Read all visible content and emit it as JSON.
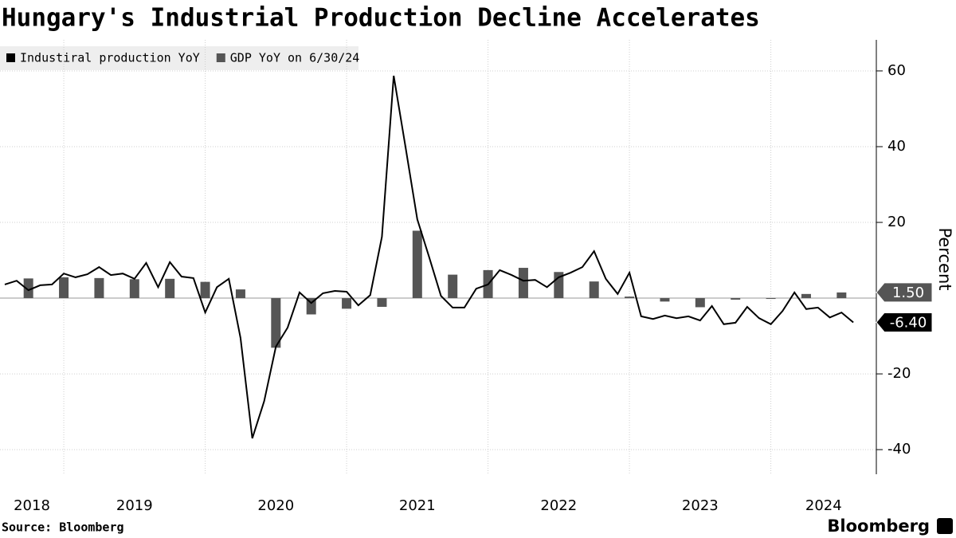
{
  "chart_data": {
    "type": "line-bar",
    "title": "Hungary's Industrial Production Decline Accelerates",
    "source": "Source: Bloomberg",
    "brand": "Bloomberg",
    "ylabel": "Percent",
    "xlim": [
      2018.549,
      2024.746
    ],
    "ylim": [
      -46.5,
      68.2
    ],
    "yticks": [
      -40,
      -20,
      20,
      40,
      60
    ],
    "xticks": [
      {
        "value": 2018,
        "label": "2018"
      },
      {
        "value": 2019,
        "label": "2019"
      },
      {
        "value": 2020,
        "label": "2020"
      },
      {
        "value": 2021,
        "label": "2021"
      },
      {
        "value": 2022,
        "label": "2022"
      },
      {
        "value": 2023,
        "label": "2023"
      },
      {
        "value": 2024,
        "label": "2024"
      }
    ],
    "grid": true,
    "series": [
      {
        "name": "Industiral production YoY",
        "kind": "line",
        "color": "#000000",
        "x": [
          2018.583,
          2018.667,
          2018.75,
          2018.833,
          2018.917,
          2019,
          2019.083,
          2019.167,
          2019.25,
          2019.333,
          2019.417,
          2019.5,
          2019.583,
          2019.667,
          2019.75,
          2019.833,
          2019.917,
          2020,
          2020.083,
          2020.167,
          2020.25,
          2020.333,
          2020.417,
          2020.5,
          2020.583,
          2020.667,
          2020.75,
          2020.833,
          2020.917,
          2021,
          2021.083,
          2021.167,
          2021.25,
          2021.333,
          2021.417,
          2021.5,
          2021.583,
          2021.667,
          2021.75,
          2021.833,
          2021.917,
          2022,
          2022.083,
          2022.167,
          2022.25,
          2022.333,
          2022.417,
          2022.5,
          2022.583,
          2022.667,
          2022.75,
          2022.833,
          2022.917,
          2023,
          2023.083,
          2023.167,
          2023.25,
          2023.333,
          2023.417,
          2023.5,
          2023.583,
          2023.667,
          2023.75,
          2023.833,
          2023.917,
          2024,
          2024.083,
          2024.167,
          2024.25,
          2024.333,
          2024.417,
          2024.5,
          2024.583
        ],
        "values": [
          3.6,
          4.6,
          2.1,
          3.4,
          3.6,
          6.5,
          5.5,
          6.3,
          8.2,
          6.1,
          6.5,
          5.1,
          9.3,
          2.9,
          9.5,
          5.7,
          5.3,
          -3.8,
          2.9,
          5.1,
          -10.5,
          -37,
          -27.2,
          -12.8,
          -7.8,
          1.5,
          -1.3,
          1.3,
          1.9,
          1.7,
          -1.9,
          0.8,
          16.2,
          58.7,
          39.8,
          20.8,
          10.9,
          0.6,
          -2.5,
          -2.5,
          2.5,
          3.6,
          7.4,
          6.1,
          4.6,
          4.8,
          2.9,
          5.5,
          6.7,
          8.2,
          12.4,
          5.1,
          1.1,
          6.7,
          -4.8,
          -5.5,
          -4.6,
          -5.3,
          -4.8,
          -5.9,
          -2.1,
          -6.9,
          -6.5,
          -2.3,
          -5.3,
          -6.9,
          -3.4,
          1.5,
          -2.9,
          -2.5,
          -5.1,
          -3.8,
          -6.4
        ],
        "value_labels": [
          null,
          null,
          null,
          null,
          null,
          null,
          null,
          null,
          null,
          null,
          null,
          null,
          null,
          null,
          null,
          null,
          null,
          null,
          null,
          null,
          null,
          null,
          null,
          null,
          null,
          null,
          null,
          null,
          null,
          null,
          null,
          null,
          null,
          null,
          null,
          null,
          null,
          null,
          null,
          null,
          null,
          null,
          null,
          null,
          null,
          null,
          null,
          null,
          null,
          null,
          null,
          null,
          null,
          null,
          null,
          null,
          null,
          null,
          null,
          null,
          null,
          null,
          null,
          null,
          null,
          null,
          null,
          null,
          null,
          null,
          null,
          null,
          "-6.40"
        ]
      },
      {
        "name": "GDP YoY on 6/30/24",
        "kind": "bar",
        "color": "#555555",
        "x": [
          2018.75,
          2019,
          2019.25,
          2019.5,
          2019.75,
          2020,
          2020.25,
          2020.5,
          2020.75,
          2021,
          2021.25,
          2021.5,
          2021.75,
          2022,
          2022.25,
          2022.5,
          2022.75,
          2023,
          2023.25,
          2023.5,
          2023.75,
          2024,
          2024.25,
          2024.5
        ],
        "values": [
          5.2,
          5.5,
          5.3,
          5.0,
          5.1,
          4.3,
          2.3,
          -13.1,
          -4.3,
          -2.8,
          -2.3,
          17.8,
          6.2,
          7.4,
          8.0,
          6.9,
          4.4,
          0.4,
          -0.9,
          -2.4,
          -0.4,
          -0.2,
          1.1,
          1.5
        ],
        "value_labels": [
          null,
          null,
          null,
          null,
          null,
          null,
          null,
          null,
          null,
          null,
          null,
          null,
          null,
          null,
          null,
          null,
          null,
          null,
          null,
          null,
          null,
          null,
          null,
          "1.50"
        ]
      }
    ]
  }
}
